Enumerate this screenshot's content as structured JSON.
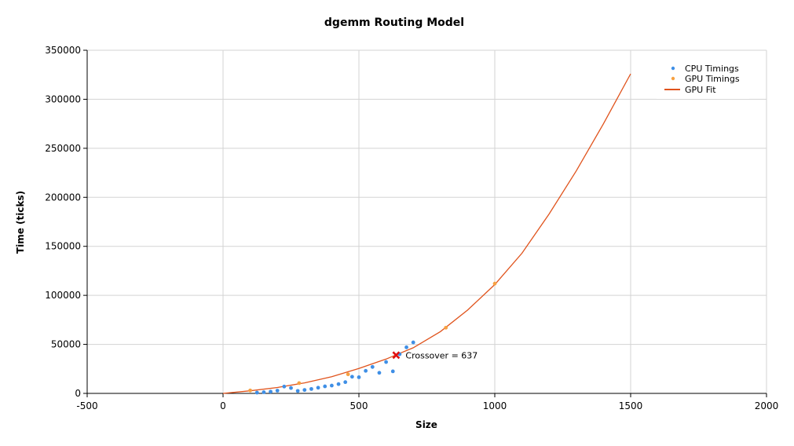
{
  "chart_data": {
    "type": "scatter",
    "title": "dgemm Routing Model",
    "xlabel": "Size",
    "ylabel": "Time (ticks)",
    "xlim": [
      -500,
      2000
    ],
    "ylim": [
      0,
      350000
    ],
    "xticks": [
      -500,
      0,
      500,
      1000,
      1500,
      2000
    ],
    "yticks": [
      0,
      50000,
      100000,
      150000,
      200000,
      250000,
      300000,
      350000
    ],
    "xtick_labels": [
      "-500",
      "0",
      "500",
      "1000",
      "1500",
      "2000"
    ],
    "ytick_labels": [
      "0",
      "50000",
      "100000",
      "150000",
      "200000",
      "250000",
      "300000",
      "350000"
    ],
    "grid": true,
    "legend_position": "top-right",
    "series": [
      {
        "name": "CPU Timings",
        "kind": "scatter",
        "color": "#3f8fe6",
        "x": [
          125,
          150,
          175,
          200,
          225,
          250,
          275,
          300,
          325,
          350,
          375,
          400,
          425,
          450,
          475,
          500,
          525,
          550,
          575,
          600,
          625,
          650,
          675,
          700
        ],
        "y": [
          800,
          1200,
          1800,
          2800,
          7000,
          5500,
          2500,
          3500,
          4500,
          5800,
          7200,
          8000,
          9500,
          11500,
          17000,
          16500,
          23000,
          27000,
          21000,
          32000,
          22500,
          40000,
          47000,
          52000
        ]
      },
      {
        "name": "GPU Timings",
        "kind": "scatter",
        "color": "#f7a142",
        "x": [
          100,
          280,
          460,
          820,
          1000
        ],
        "y": [
          3000,
          10500,
          19500,
          67000,
          112000
        ]
      },
      {
        "name": "GPU Fit",
        "kind": "line",
        "color": "#e0531c",
        "x": [
          0,
          100,
          200,
          300,
          400,
          500,
          600,
          700,
          800,
          900,
          1000,
          1100,
          1200,
          1300,
          1400,
          1500
        ],
        "y": [
          0,
          2650,
          6000,
          10700,
          17000,
          25400,
          35000,
          46500,
          63000,
          85000,
          111000,
          143000,
          183000,
          227000,
          275000,
          326000
        ]
      }
    ],
    "annotations": [
      {
        "text": "Crossover = 637",
        "x": 637,
        "y": 39000,
        "marker": "x",
        "color": "#e01010"
      }
    ]
  }
}
